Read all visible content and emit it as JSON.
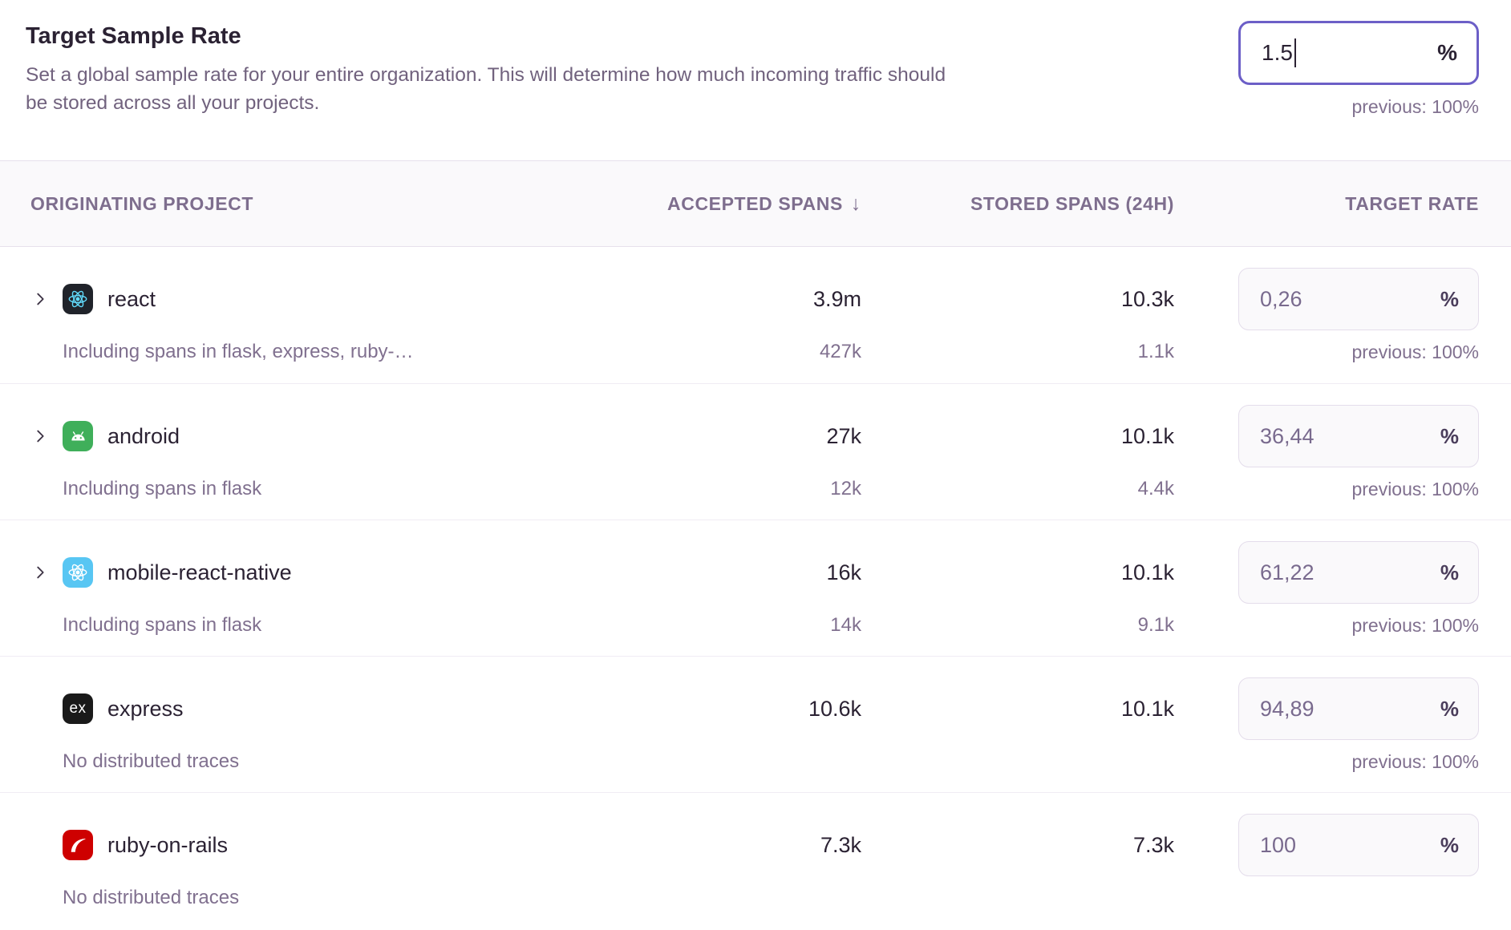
{
  "section": {
    "title": "Target Sample Rate",
    "description": "Set a global sample rate for your entire organization. This will determine how much incoming traffic should be stored across all your projects.",
    "input": {
      "value": "1.5",
      "suffix": "%",
      "previous": "previous: 100%"
    }
  },
  "table": {
    "columns": {
      "project": "ORIGINATING PROJECT",
      "accepted": "ACCEPTED SPANS",
      "accepted_sort": "↓",
      "stored": "STORED SPANS (24H)",
      "rate": "TARGET RATE"
    },
    "rows": [
      {
        "name": "react",
        "expandable": true,
        "icon": {
          "name": "react-icon",
          "glyph": "react-atom",
          "bg": "#20232A",
          "fg": "#61DAFB"
        },
        "accepted": "3.9m",
        "stored": "10.3k",
        "rate": "0,26",
        "rate_suffix": "%",
        "note": "Including spans in flask, express, ruby-…",
        "sub_accepted": "427k",
        "sub_stored": "1.1k",
        "previous": "previous: 100%"
      },
      {
        "name": "android",
        "expandable": true,
        "icon": {
          "name": "android-icon",
          "glyph": "android",
          "bg": "#3FAF5A",
          "fg": "#FFFFFF"
        },
        "accepted": "27k",
        "stored": "10.1k",
        "rate": "36,44",
        "rate_suffix": "%",
        "note": "Including spans in flask",
        "sub_accepted": "12k",
        "sub_stored": "4.4k",
        "previous": "previous: 100%"
      },
      {
        "name": "mobile-react-native",
        "expandable": true,
        "icon": {
          "name": "react-native-icon",
          "glyph": "react-atom",
          "bg": "#58C6F3",
          "fg": "#FFFFFF"
        },
        "accepted": "16k",
        "stored": "10.1k",
        "rate": "61,22",
        "rate_suffix": "%",
        "note": "Including spans in flask",
        "sub_accepted": "14k",
        "sub_stored": "9.1k",
        "previous": "previous: 100%"
      },
      {
        "name": "express",
        "expandable": false,
        "icon": {
          "name": "express-icon",
          "glyph": "text",
          "bg": "#1A1A1A",
          "fg": "#FFFFFF",
          "text": "ex"
        },
        "accepted": "10.6k",
        "stored": "10.1k",
        "rate": "94,89",
        "rate_suffix": "%",
        "note": "No distributed traces",
        "sub_accepted": "",
        "sub_stored": "",
        "previous": "previous: 100%"
      },
      {
        "name": "ruby-on-rails",
        "expandable": false,
        "icon": {
          "name": "rails-icon",
          "glyph": "rails",
          "bg": "#CE0000",
          "fg": "#FFFFFF"
        },
        "accepted": "7.3k",
        "stored": "7.3k",
        "rate": "100",
        "rate_suffix": "%",
        "note": "No distributed traces",
        "sub_accepted": "",
        "sub_stored": "",
        "previous": ""
      }
    ]
  },
  "colors": {
    "accent_purple": "#6C5FC7",
    "text_primary": "#2B2233",
    "text_muted": "#80708F",
    "header_bg": "#FAF9FB",
    "border": "#E7E1EC",
    "row_border": "#F0ECF4",
    "rate_box_bg": "#FAF9FB"
  }
}
